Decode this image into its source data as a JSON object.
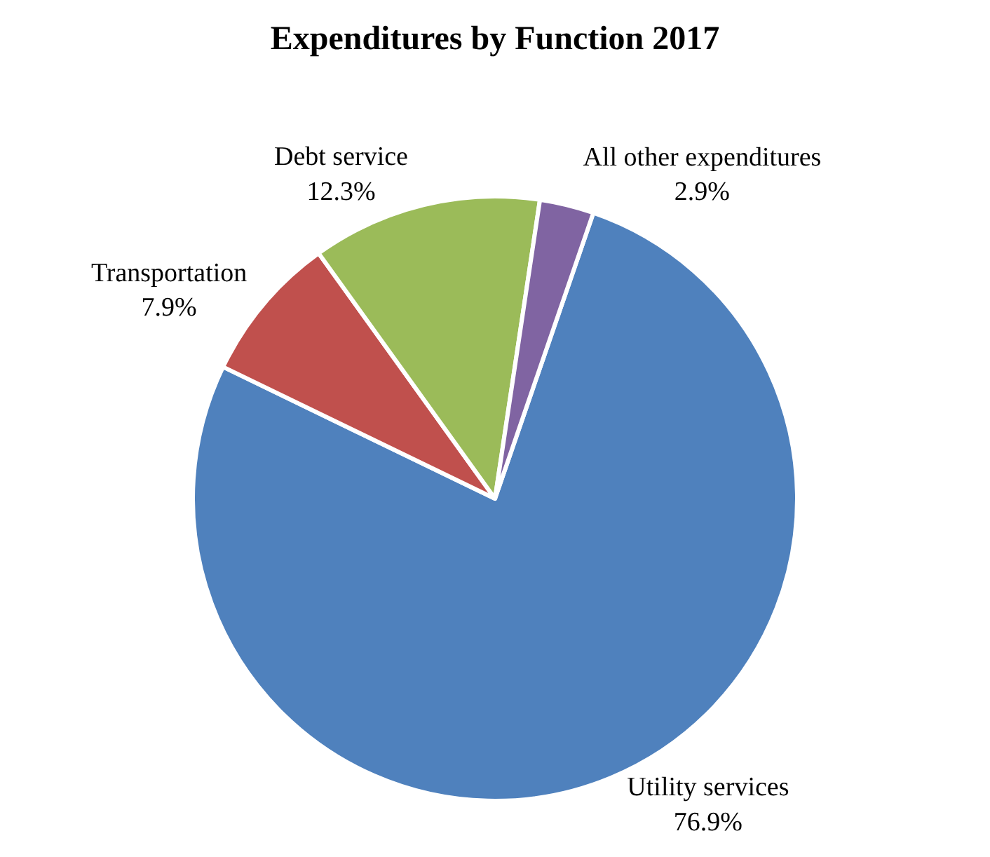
{
  "chart_data": {
    "type": "pie",
    "title": "Expenditures by Function 2017",
    "categories": [
      "Utility services",
      "Transportation",
      "Debt service",
      "All other expenditures"
    ],
    "values": [
      76.9,
      7.9,
      12.3,
      2.9
    ],
    "value_labels": [
      "76.9%",
      "7.9%",
      "12.3%",
      "2.9%"
    ],
    "colors": [
      "#4f81bd",
      "#c0504d",
      "#9bbb59",
      "#8064a2"
    ],
    "legend": false
  }
}
